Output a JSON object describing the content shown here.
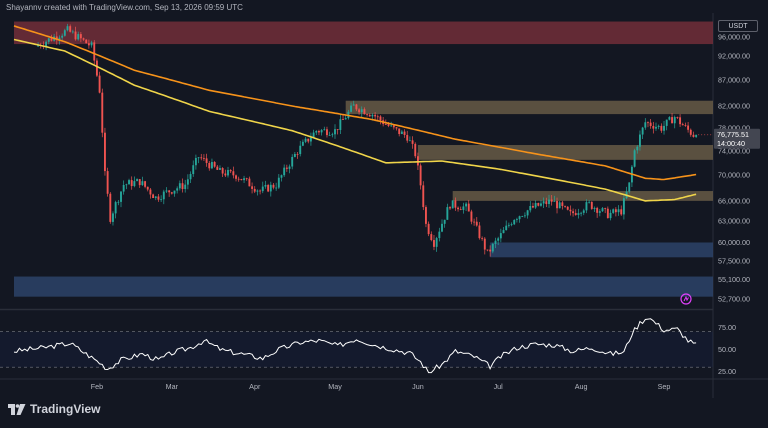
{
  "header": {
    "credit": "Shayannv created with TradingView.com, Sep 13, 2026 09:59 UTC"
  },
  "currency": "USDT",
  "brand": {
    "name": "TradingView",
    "logo_icon": "tradingview-logo-icon"
  },
  "colors": {
    "background": "#131722",
    "up": "#26a69a",
    "down": "#ef5350",
    "ma_fast": "#f0d54a",
    "ma_slow": "#f7931a",
    "rsi": "#ffffff",
    "zone_red": "#7a2f3b",
    "zone_tan": "#6e6049",
    "zone_blue": "#2e4670"
  },
  "chart_data": [
    {
      "type": "candlestick",
      "title": "",
      "x_axis": {
        "ticks": [
          "Feb",
          "Mar",
          "Apr",
          "May",
          "Jun",
          "Jul",
          "Aug",
          "Sep"
        ]
      },
      "y_axis": {
        "scale": "log",
        "range": [
          52000,
          101000
        ],
        "ticks": [
          "96,000.00",
          "92,000.00",
          "87,000.00",
          "82,000.00",
          "78,000.00",
          "74,000.00",
          "70,000.00",
          "66,000.00",
          "63,000.00",
          "60,000.00",
          "57,500.00",
          "55,100.00",
          "52,700.00"
        ]
      },
      "last_price": {
        "value": "76,775.51",
        "countdown": "14:00:40"
      },
      "path_keypoints": [
        [
          "Jan 10",
          94000
        ],
        [
          "Jan 22",
          97500
        ],
        [
          "Jan 31",
          94000
        ],
        [
          "Feb 3",
          85000
        ],
        [
          "Feb 5",
          70000
        ],
        [
          "Feb 7",
          63500
        ],
        [
          "Feb 12",
          68500
        ],
        [
          "Feb 18",
          69000
        ],
        [
          "Feb 24",
          66500
        ],
        [
          "Mar 1",
          67500
        ],
        [
          "Mar 7",
          68500
        ],
        [
          "Mar 12",
          73000
        ],
        [
          "Mar 20",
          70500
        ],
        [
          "Mar 26",
          70000
        ],
        [
          "Apr 4",
          67500
        ],
        [
          "Apr 10",
          68500
        ],
        [
          "Apr 18",
          74000
        ],
        [
          "Apr 25",
          77500
        ],
        [
          "May 2",
          77500
        ],
        [
          "May 9",
          82000
        ],
        [
          "May 16",
          80500
        ],
        [
          "May 23",
          78000
        ],
        [
          "May 29",
          76500
        ],
        [
          "Jun 1",
          73500
        ],
        [
          "Jun 3",
          68500
        ],
        [
          "Jun 5",
          62500
        ],
        [
          "Jun 8",
          60000
        ],
        [
          "Jun 14",
          65500
        ],
        [
          "Jun 20",
          65000
        ],
        [
          "Jun 25",
          61000
        ],
        [
          "Jun 28",
          58500
        ],
        [
          "Jul 2",
          60500
        ],
        [
          "Jul 8",
          63500
        ],
        [
          "Jul 15",
          65000
        ],
        [
          "Jul 22",
          66000
        ],
        [
          "Jul 29",
          64000
        ],
        [
          "Aug 5",
          65500
        ],
        [
          "Aug 12",
          64000
        ],
        [
          "Aug 17",
          64500
        ],
        [
          "Aug 20",
          68500
        ],
        [
          "Aug 22",
          74000
        ],
        [
          "Aug 26",
          79000
        ],
        [
          "Sep 1",
          78000
        ],
        [
          "Sep 6",
          80000
        ],
        [
          "Sep 10",
          78000
        ],
        [
          "Sep 13",
          76775.51
        ]
      ],
      "moving_averages": [
        {
          "points": [
            [
              "Jan 1",
              98500
            ],
            [
              "Jan 20",
              95000
            ],
            [
              "Feb 15",
              89000
            ],
            [
              "Mar 15",
              85000
            ],
            [
              "Apr 15",
              82000
            ],
            [
              "May 15",
              79500
            ],
            [
              "Jun 15",
              76000
            ],
            [
              "Jul 15",
              73500
            ],
            [
              "Aug 10",
              71500
            ],
            [
              "Aug 25",
              69500
            ],
            [
              "Sep 1",
              69300
            ],
            [
              "Sep 13",
              70100
            ]
          ]
        },
        {
          "points": [
            [
              "Jan 1",
              95500
            ],
            [
              "Jan 20",
              93000
            ],
            [
              "Feb 15",
              86000
            ],
            [
              "Mar 15",
              81000
            ],
            [
              "Apr 15",
              77500
            ],
            [
              "May 1",
              75000
            ],
            [
              "May 20",
              72000
            ],
            [
              "Jun 10",
              72300
            ],
            [
              "Jul 1",
              71000
            ],
            [
              "Jul 20",
              69500
            ],
            [
              "Aug 10",
              67800
            ],
            [
              "Aug 25",
              66000
            ],
            [
              "Sep 5",
              66200
            ],
            [
              "Sep 13",
              67000
            ]
          ]
        }
      ],
      "zones": [
        {
          "color": "red",
          "from": "Jan 1",
          "to": "Sep 20",
          "low": 94500,
          "high": 99500
        },
        {
          "color": "tan",
          "from": "May 5",
          "to": "Sep 20",
          "low": 80500,
          "high": 83000
        },
        {
          "color": "tan",
          "from": "Jun 1",
          "to": "Sep 20",
          "low": 72500,
          "high": 75000
        },
        {
          "color": "tan",
          "from": "Jun 14",
          "to": "Sep 20",
          "low": 66000,
          "high": 67500
        },
        {
          "color": "blue",
          "from": "Jun 28",
          "to": "Sep 20",
          "low": 58000,
          "high": 60000
        },
        {
          "color": "blue",
          "from": "Jan 1",
          "to": "Sep 20",
          "low": 53000,
          "high": 55500
        }
      ]
    },
    {
      "type": "line",
      "title": "",
      "y_axis": {
        "range": [
          20,
          90
        ],
        "ticks": [
          "75.00",
          "50.00",
          "25.00"
        ],
        "bands": [
          30,
          70
        ]
      },
      "keypoints": [
        [
          "Jan 1",
          48
        ],
        [
          "Jan 12",
          52
        ],
        [
          "Jan 22",
          57
        ],
        [
          "Feb 2",
          35
        ],
        [
          "Feb 5",
          28
        ],
        [
          "Feb 10",
          38
        ],
        [
          "Feb 18",
          45
        ],
        [
          "Feb 24",
          38
        ],
        [
          "Mar 1",
          46
        ],
        [
          "Mar 8",
          52
        ],
        [
          "Mar 13",
          60
        ],
        [
          "Mar 20",
          49
        ],
        [
          "Mar 27",
          45
        ],
        [
          "Apr 4",
          40
        ],
        [
          "Apr 10",
          50
        ],
        [
          "Apr 18",
          58
        ],
        [
          "Apr 25",
          60
        ],
        [
          "May 2",
          54
        ],
        [
          "May 9",
          62
        ],
        [
          "May 16",
          55
        ],
        [
          "May 23",
          50
        ],
        [
          "May 29",
          46
        ],
        [
          "Jun 2",
          36
        ],
        [
          "Jun 5",
          24
        ],
        [
          "Jun 10",
          33
        ],
        [
          "Jun 15",
          48
        ],
        [
          "Jun 22",
          42
        ],
        [
          "Jun 28",
          31
        ],
        [
          "Jul 2",
          42
        ],
        [
          "Jul 8",
          52
        ],
        [
          "Jul 15",
          56
        ],
        [
          "Jul 22",
          55
        ],
        [
          "Jul 29",
          48
        ],
        [
          "Aug 5",
          52
        ],
        [
          "Aug 12",
          45
        ],
        [
          "Aug 17",
          47
        ],
        [
          "Aug 20",
          68
        ],
        [
          "Aug 23",
          80
        ],
        [
          "Aug 26",
          87
        ],
        [
          "Sep 1",
          72
        ],
        [
          "Sep 6",
          73
        ],
        [
          "Sep 10",
          60
        ],
        [
          "Sep 13",
          55
        ]
      ]
    }
  ]
}
